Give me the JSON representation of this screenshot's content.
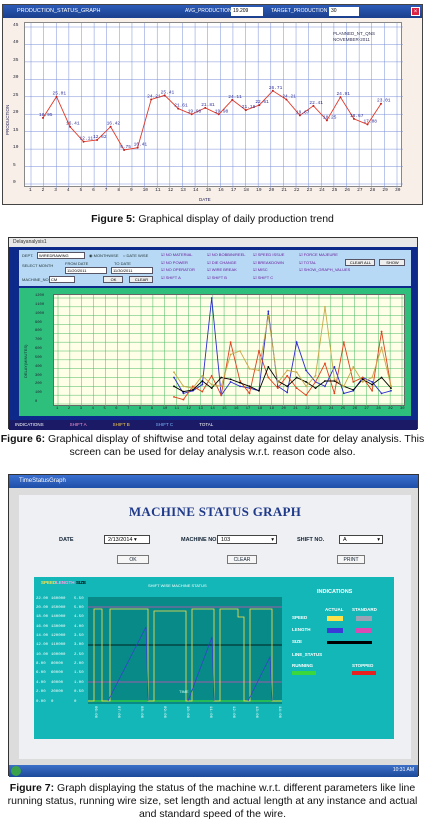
{
  "figure5": {
    "window_title": "PRODUCTION_STATUS_GRAPH",
    "avg_label": "AVG_PRODUCTION",
    "avg_value": "19.209",
    "target_label": "TARGET_PRODUCTION",
    "target_value": "30",
    "legend_line1": "PLANNED_NT_QNS",
    "legend_line2": "NOVEMBER-2011",
    "y_axis_label": "PRODUCTION",
    "x_axis_label": "DATE",
    "y_ticks": [
      "45",
      "40",
      "35",
      "30",
      "25",
      "20",
      "15",
      "10",
      "5",
      "0"
    ],
    "x_ticks": [
      "1",
      "2",
      "3",
      "4",
      "5",
      "6",
      "7",
      "8",
      "9",
      "10",
      "11",
      "12",
      "13",
      "14",
      "15",
      "16",
      "17",
      "18",
      "19",
      "20",
      "21",
      "22",
      "23",
      "24",
      "25",
      "26",
      "27",
      "28",
      "29",
      "30"
    ],
    "series_values": [
      18.95,
      25.01,
      16.41,
      12.11,
      12.62,
      16.42,
      9.75,
      10.41,
      24.21,
      25.41,
      21.61,
      19.98,
      21.81,
      19.98,
      24.11,
      21.18,
      22.61,
      26.71,
      24.21,
      19.67,
      22.41,
      18.25,
      24.91,
      18.67,
      17.08,
      23.01
    ],
    "point_labels": [
      "18.95",
      "25.01",
      "16.41",
      "12.11",
      "12.62",
      "16.42",
      "9.75",
      "10.41",
      "24.21",
      "25.41",
      "21.61",
      "19.98",
      "21.81",
      "19.98",
      "24.11",
      "21.18",
      "22.61",
      "26.71",
      "24.21",
      "19.67",
      "22.41",
      "18.25",
      "24.91",
      "18.67",
      "17.08",
      "23.01"
    ],
    "caption_bold": "Figure 5:",
    "caption_text": " Graphical display of daily production trend"
  },
  "figure6": {
    "window_title": "Delayanalysis1",
    "dept_label": "DEPT.",
    "dept_value": "WIREDRAWING",
    "monthwise_label": "MONTHWISE",
    "datewise_label": "DATE WISE",
    "select_month_label": "SELECT MONTH",
    "from_date_label": "FROM DATE",
    "to_date_label": "TO DATE",
    "from_date_value": "11/20/2011",
    "to_date_value": "11/30/2011",
    "machine_label": "MACHINE_NO.",
    "machine_value": "CM",
    "ok_label": "OK",
    "clear_label": "CLEAR",
    "show_label": "SHOW",
    "clear_all_label": "CLEAR ALL",
    "reasons": [
      "NO MATERIAL",
      "NO POWER",
      "NO OPERATOR",
      "SHIFT A",
      "NO BOBBIN/REEL",
      "DIE CHANGE",
      "WIRE BREAK",
      "SHIFT B",
      "SPEED ISSUE",
      "BREAKDOWN",
      "MISC",
      "SHIFT C",
      "FORCE MAJEURE",
      "TOTAL",
      "SHOW_GRAPH_VALUES"
    ],
    "y_axis_label": "DELAY(MINUTES)",
    "x_axis_label": "DATE",
    "y_ticks": [
      "1200",
      "1100",
      "1000",
      "900",
      "800",
      "700",
      "600",
      "500",
      "400",
      "300",
      "200",
      "100",
      "0"
    ],
    "x_ticks": [
      "1",
      "2",
      "3",
      "4",
      "5",
      "6",
      "7",
      "8",
      "9",
      "10",
      "11",
      "12",
      "13",
      "14",
      "15",
      "16",
      "17",
      "18",
      "19",
      "20",
      "21",
      "22",
      "23",
      "24",
      "25",
      "26",
      "27",
      "28",
      "29",
      "30"
    ],
    "series": [
      {
        "color": "#2a2ad0",
        "values": [
          300,
          120,
          150,
          220,
          1200,
          100,
          250,
          200,
          180,
          150,
          1050,
          200,
          130,
          700,
          380,
          250,
          200,
          420,
          120,
          150,
          300,
          250,
          120,
          150
        ]
      },
      {
        "color": "#e0401a",
        "values": [
          80,
          50,
          200,
          140,
          320,
          100,
          700,
          260,
          120,
          600,
          300,
          180,
          320,
          180,
          100,
          250,
          460,
          120,
          700,
          250,
          300,
          150,
          820,
          200
        ]
      },
      {
        "color": "#000000",
        "values": [
          200,
          140,
          160,
          260,
          180,
          300,
          280,
          240,
          200,
          150,
          420,
          260,
          200,
          300,
          250,
          180,
          260,
          260,
          200,
          160,
          280,
          220,
          300,
          180
        ]
      },
      {
        "color": "#c8a84a",
        "values": [
          360,
          200,
          180,
          320,
          220,
          200,
          560,
          600,
          400,
          380,
          1000,
          240,
          380,
          360,
          200,
          320,
          1100,
          280,
          200,
          420,
          250,
          300,
          640,
          200
        ]
      }
    ],
    "status_items": [
      "INDICATIONS",
      "SHIFT A",
      "SHIFT B",
      "SHIFT C",
      "TOTAL"
    ],
    "caption_bold": "Figure 6:",
    "caption_text": " Graphical display of shiftwise and total delay against date for delay analysis. This screen can be used for delay analysis w.r.t. reason code also."
  },
  "figure7": {
    "window_title": "TimeStatusGraph",
    "heading": "MACHINE STATUS GRAPH",
    "date_label": "DATE",
    "date_value": "2/13/2014",
    "machine_label": "MACHINE NO.",
    "machine_value": "103",
    "shift_label": "SHIFT NO.",
    "shift_value": "A",
    "ok_label": "OK",
    "clear_label": "CLEAR",
    "print_label": "PRINT",
    "graph_title": "SHIFT WISE MACHINE STATUS",
    "col_labels": [
      "SPEED",
      "LENGTH",
      "SIZE"
    ],
    "speed_ticks": [
      "22.00",
      "20.00",
      "18.00",
      "16.00",
      "14.00",
      "12.00",
      "10.00",
      "8.00",
      "6.00",
      "4.00",
      "2.00",
      "0.00"
    ],
    "length_ticks": [
      "160000",
      "150000",
      "140000",
      "130000",
      "120000",
      "110000",
      "100000",
      "80000",
      "60000",
      "40000",
      "20000",
      "0"
    ],
    "size_ticks": [
      "5.50",
      "5.00",
      "4.50",
      "4.00",
      "3.50",
      "3.00",
      "2.50",
      "2.00",
      "1.50",
      "1.00",
      "0.50",
      "0"
    ],
    "x_ticks": [
      "06:00",
      "07:00",
      "08:00",
      "09:00",
      "10:00",
      "11:00",
      "12:00",
      "13:00",
      "14:00"
    ],
    "time_label": "TIME",
    "indications_title": "INDICATIONS",
    "actual_label": "ACTUAL",
    "standard_label": "STANDARD",
    "speed_label": "SPEED",
    "length_label": "LENGTH",
    "size_label": "SIZE",
    "line_status_label": "LINE_STATUS",
    "running_label": "RUNNING",
    "stopped_label": "STOPPED",
    "clock": "10:31 AM",
    "caption_bold": "Figure 7:",
    "caption_text": " Graph displaying the status of the machine w.r.t. different parameters like line running status, running wire size, set length and actual length at any instance and actual and standard speed of the wire."
  }
}
